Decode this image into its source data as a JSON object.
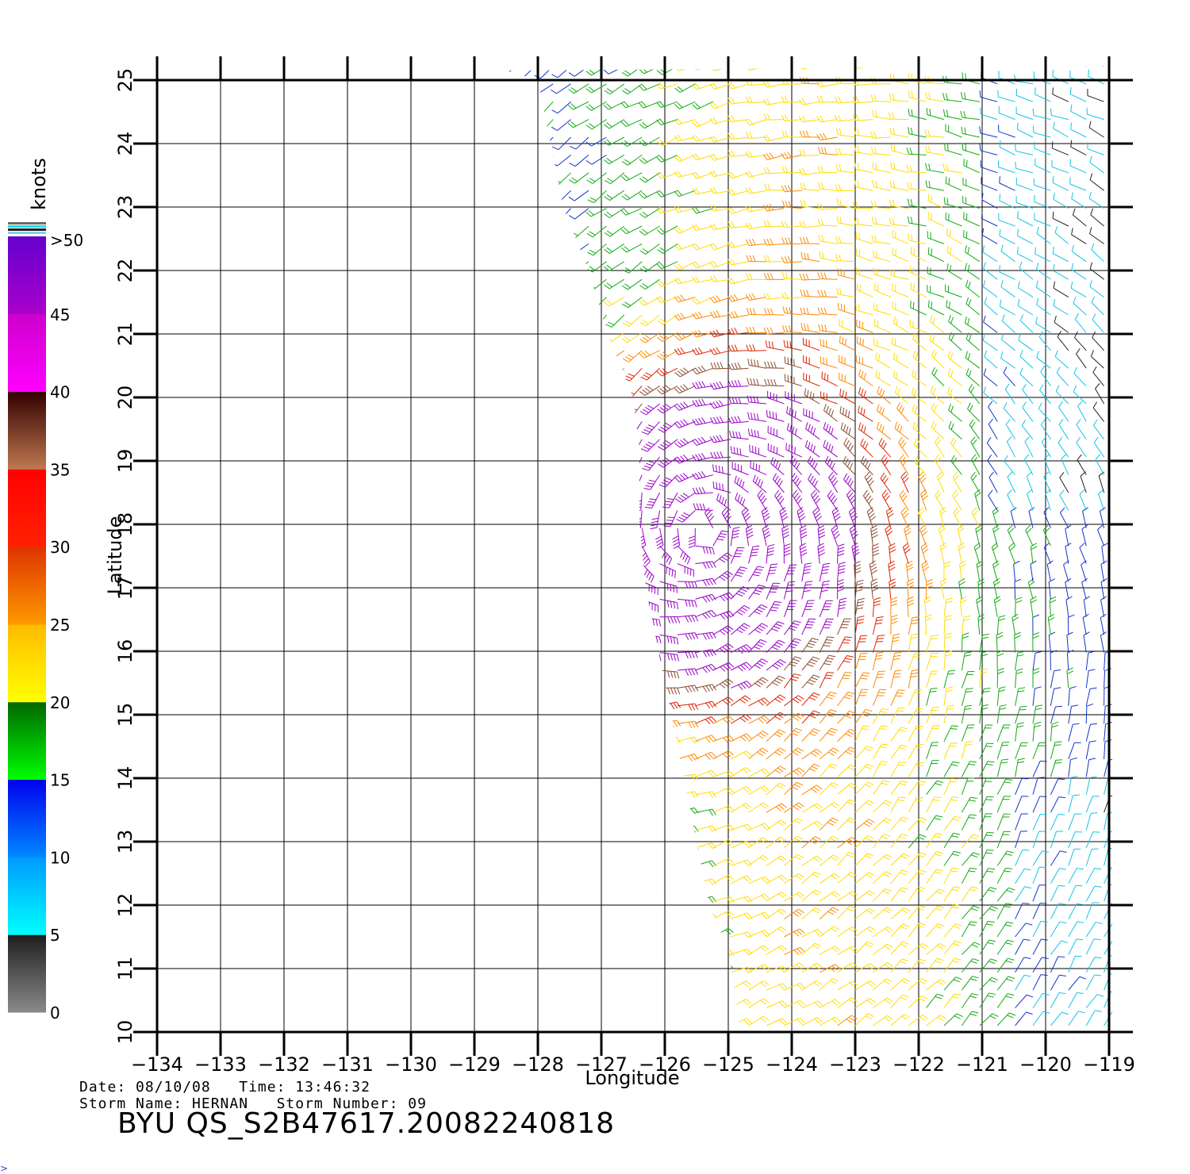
{
  "chart_data": {
    "type": "wind-barb-map",
    "xlabel": "Longitude",
    "ylabel": "Latitude",
    "xlim": [
      -134,
      -119
    ],
    "ylim": [
      10,
      25
    ],
    "x_ticks": [
      "−134",
      "−133",
      "−132",
      "−131",
      "−130",
      "−129",
      "−128",
      "−127",
      "−126",
      "−125",
      "−124",
      "−123",
      "−122",
      "−121",
      "−120",
      "−119"
    ],
    "y_ticks": [
      "10",
      "11",
      "12",
      "13",
      "14",
      "15",
      "16",
      "17",
      "18",
      "19",
      "20",
      "21",
      "22",
      "23",
      "24",
      "25"
    ],
    "grid": true,
    "storm_center": {
      "lon": -125.4,
      "lat": 17.9
    },
    "colorbar": {
      "unit_label": "knots",
      "labels": [
        "0",
        "5",
        "10",
        "15",
        "20",
        "25",
        "30",
        "35",
        "40",
        "45",
        ">50"
      ],
      "bands": [
        {
          "from": 0,
          "to": 5,
          "colors": [
            "#8a8a8a",
            "#1e1e1e"
          ]
        },
        {
          "from": 5,
          "to": 10,
          "colors": [
            "#00ffff",
            "#0099ff"
          ]
        },
        {
          "from": 10,
          "to": 15,
          "colors": [
            "#0088ff",
            "#0000ee"
          ]
        },
        {
          "from": 15,
          "to": 20,
          "colors": [
            "#00ff00",
            "#006600"
          ]
        },
        {
          "from": 20,
          "to": 25,
          "colors": [
            "#ffff00",
            "#ffbb00"
          ]
        },
        {
          "from": 25,
          "to": 30,
          "colors": [
            "#ff9900",
            "#dd3300"
          ]
        },
        {
          "from": 30,
          "to": 35,
          "colors": [
            "#ff2200",
            "#ff0000"
          ]
        },
        {
          "from": 35,
          "to": 40,
          "colors": [
            "#c07850",
            "#300000"
          ]
        },
        {
          "from": 40,
          "to": 45,
          "colors": [
            "#ff00ff",
            "#cc00cc"
          ]
        },
        {
          "from": 45,
          "to": 50,
          "colors": [
            "#aa00cc",
            "#6600cc"
          ]
        }
      ]
    }
  },
  "meta": {
    "date_line": "Date: 08/10/08   Time: 13:46:32",
    "storm_line": "Storm Name: HERNAN   Storm Number: 09",
    "title": "BYU QS_S2B47617.20082240818",
    "corner_glyph": ">"
  }
}
